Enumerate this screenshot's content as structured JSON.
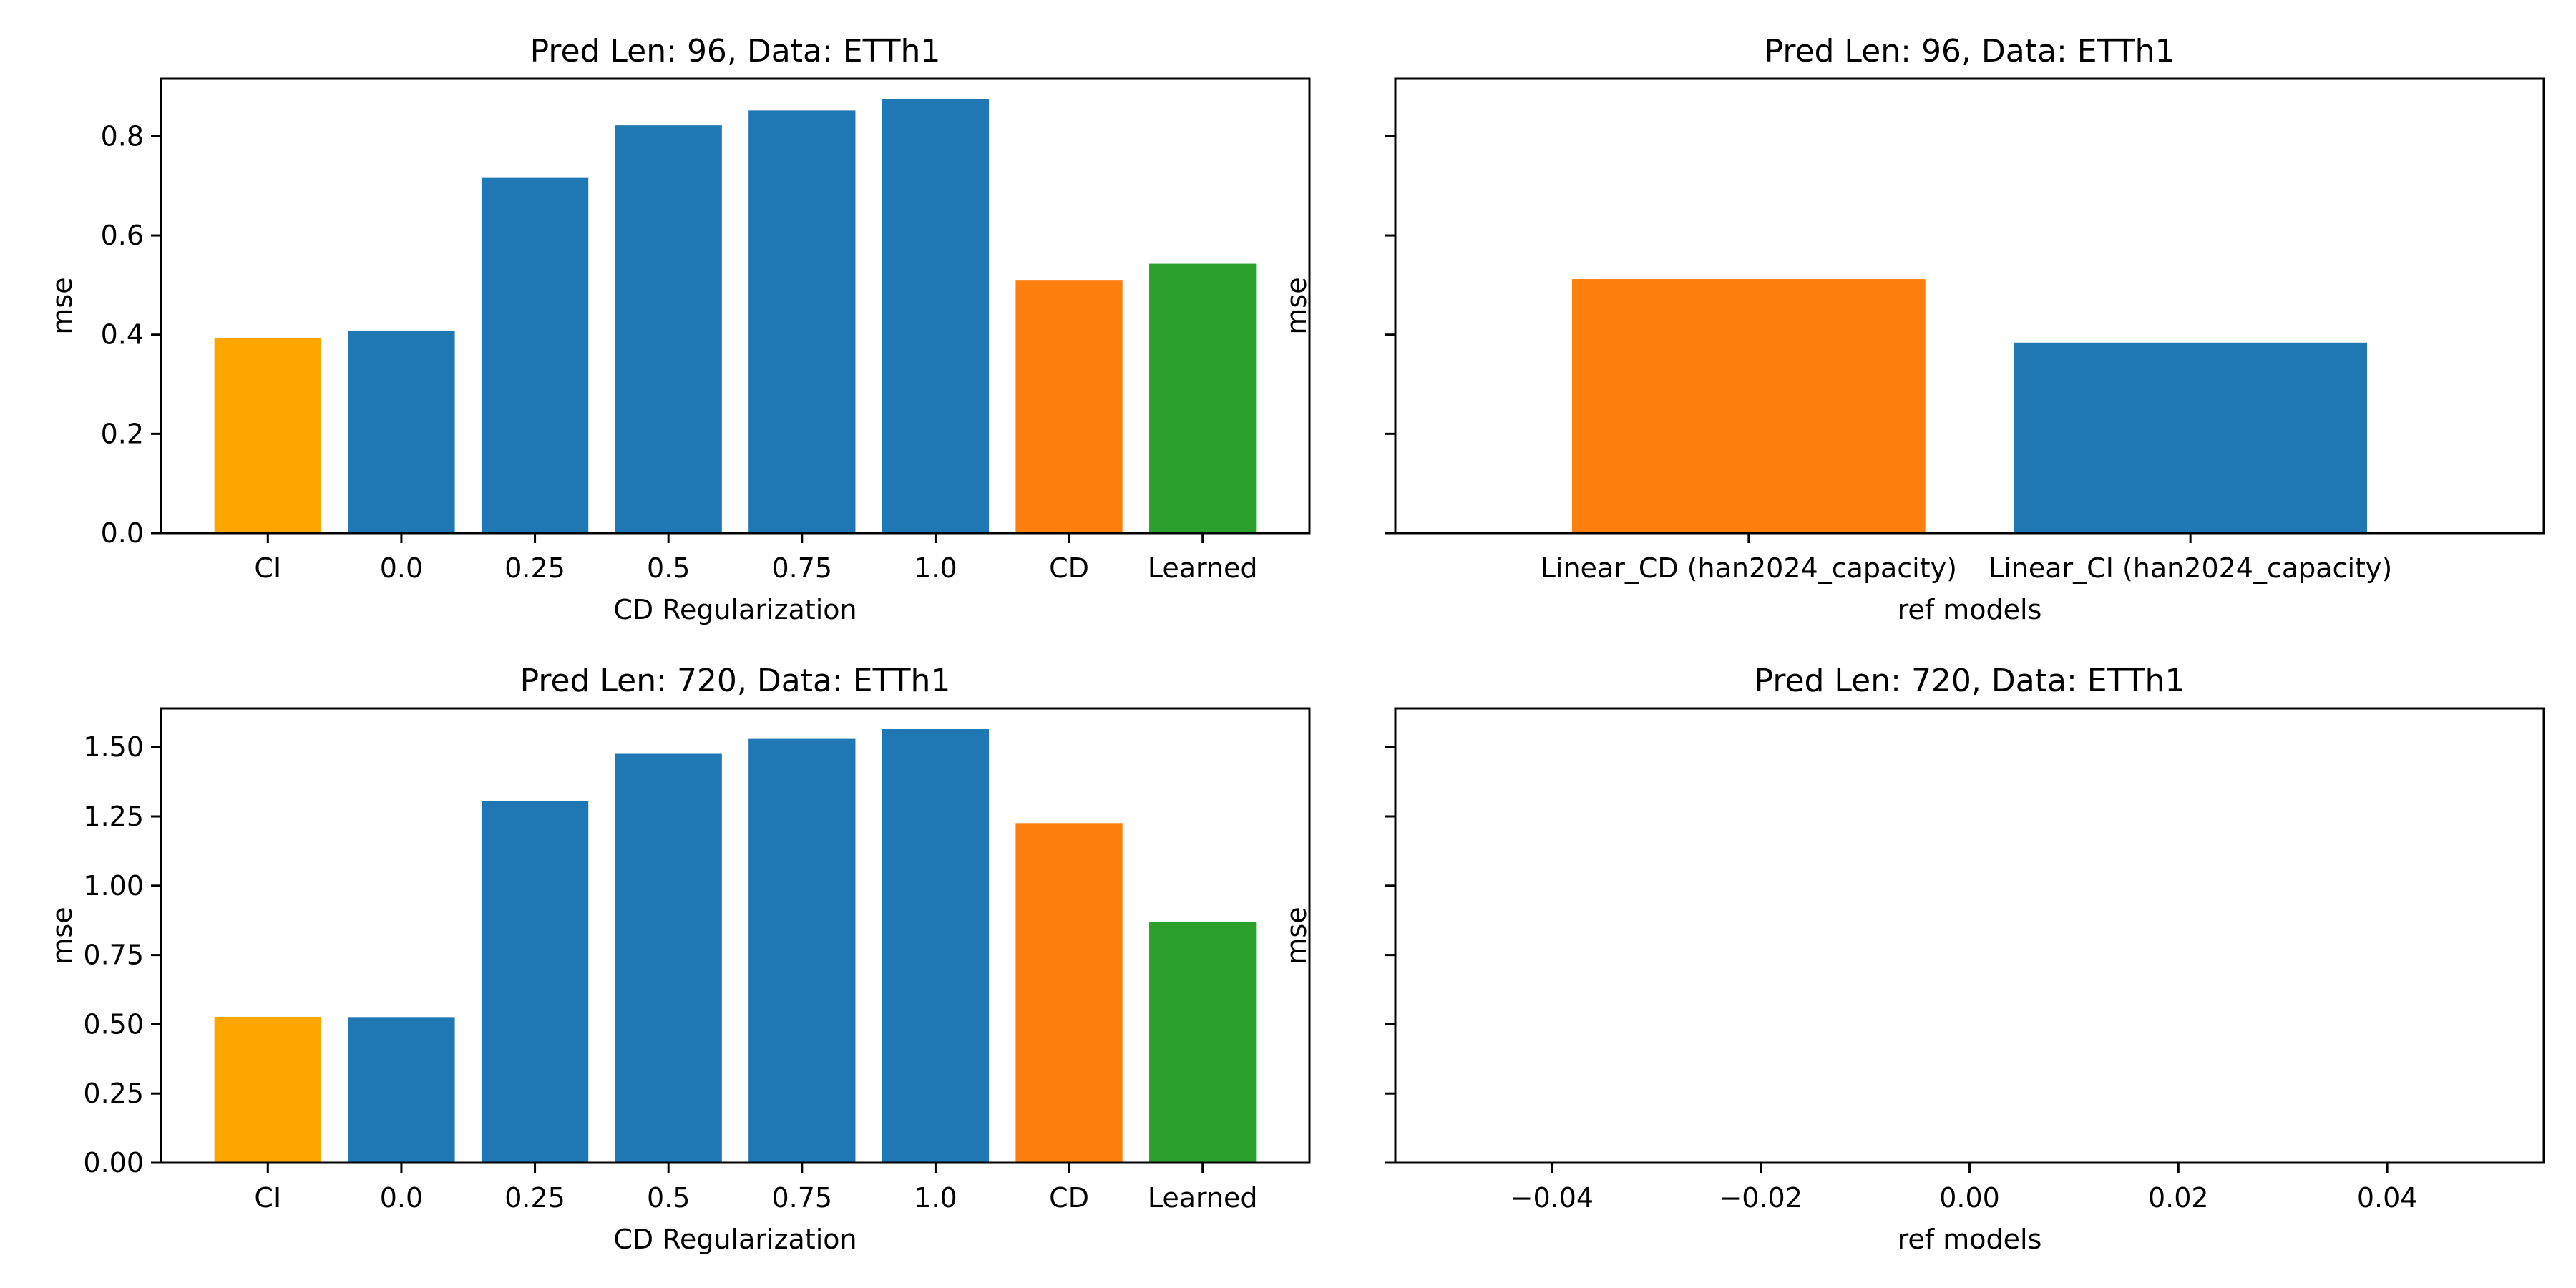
{
  "colors": {
    "ci": "#ffa500",
    "reg": "#1f77b4",
    "cd": "#ff7f0e",
    "learned": "#2ca02c"
  },
  "chart_data": [
    {
      "type": "bar",
      "title": "Pred Len: 96, Data: ETTh1",
      "xlabel": "CD Regularization",
      "ylabel": "mse",
      "categories": [
        "CI",
        "0.0",
        "0.25",
        "0.5",
        "0.75",
        "1.0",
        "CD",
        "Learned"
      ],
      "values": [
        0.393,
        0.408,
        0.716,
        0.822,
        0.852,
        0.875,
        0.509,
        0.543
      ],
      "bar_colors": [
        "ci",
        "reg",
        "reg",
        "reg",
        "reg",
        "reg",
        "cd",
        "learned"
      ],
      "ylim": [
        0,
        0.916
      ],
      "yticks": [
        0.0,
        0.2,
        0.4,
        0.6,
        0.8
      ],
      "ytick_labels": [
        "0.0",
        "0.2",
        "0.4",
        "0.6",
        "0.8"
      ]
    },
    {
      "type": "bar",
      "title": "Pred Len: 96, Data: ETTh1",
      "xlabel": "ref models",
      "ylabel": "mse",
      "categories": [
        "Linear_CD (han2024_capacity)",
        "Linear_CI (han2024_capacity)"
      ],
      "values": [
        0.512,
        0.384
      ],
      "bar_colors": [
        "cd",
        "reg"
      ],
      "ylim": [
        0,
        0.916
      ],
      "yticks": [
        0.0,
        0.2,
        0.4,
        0.6,
        0.8
      ],
      "ytick_labels": []
    },
    {
      "type": "bar",
      "title": "Pred Len: 720, Data: ETTh1",
      "xlabel": "CD Regularization",
      "ylabel": "mse",
      "categories": [
        "CI",
        "0.0",
        "0.25",
        "0.5",
        "0.75",
        "1.0",
        "CD",
        "Learned"
      ],
      "values": [
        0.527,
        0.526,
        1.305,
        1.476,
        1.53,
        1.565,
        1.226,
        0.869
      ],
      "bar_colors": [
        "ci",
        "reg",
        "reg",
        "reg",
        "reg",
        "reg",
        "cd",
        "learned"
      ],
      "ylim": [
        0,
        1.64
      ],
      "yticks": [
        0.0,
        0.25,
        0.5,
        0.75,
        1.0,
        1.25,
        1.5
      ],
      "ytick_labels": [
        "0.00",
        "0.25",
        "0.50",
        "0.75",
        "1.00",
        "1.25",
        "1.50"
      ]
    },
    {
      "type": "bar",
      "title": "Pred Len: 720, Data: ETTh1",
      "xlabel": "ref models",
      "ylabel": "mse",
      "categories": [],
      "values": [],
      "xlim": [
        -0.055,
        0.055
      ],
      "xticks": [
        -0.04,
        -0.02,
        0.0,
        0.02,
        0.04
      ],
      "xtick_labels": [
        "−0.04",
        "−0.02",
        "0.00",
        "0.02",
        "0.04"
      ],
      "ylim": [
        0,
        1.64
      ],
      "yticks": [
        0.0,
        0.25,
        0.5,
        0.75,
        1.0,
        1.25,
        1.5
      ],
      "ytick_labels": []
    }
  ]
}
